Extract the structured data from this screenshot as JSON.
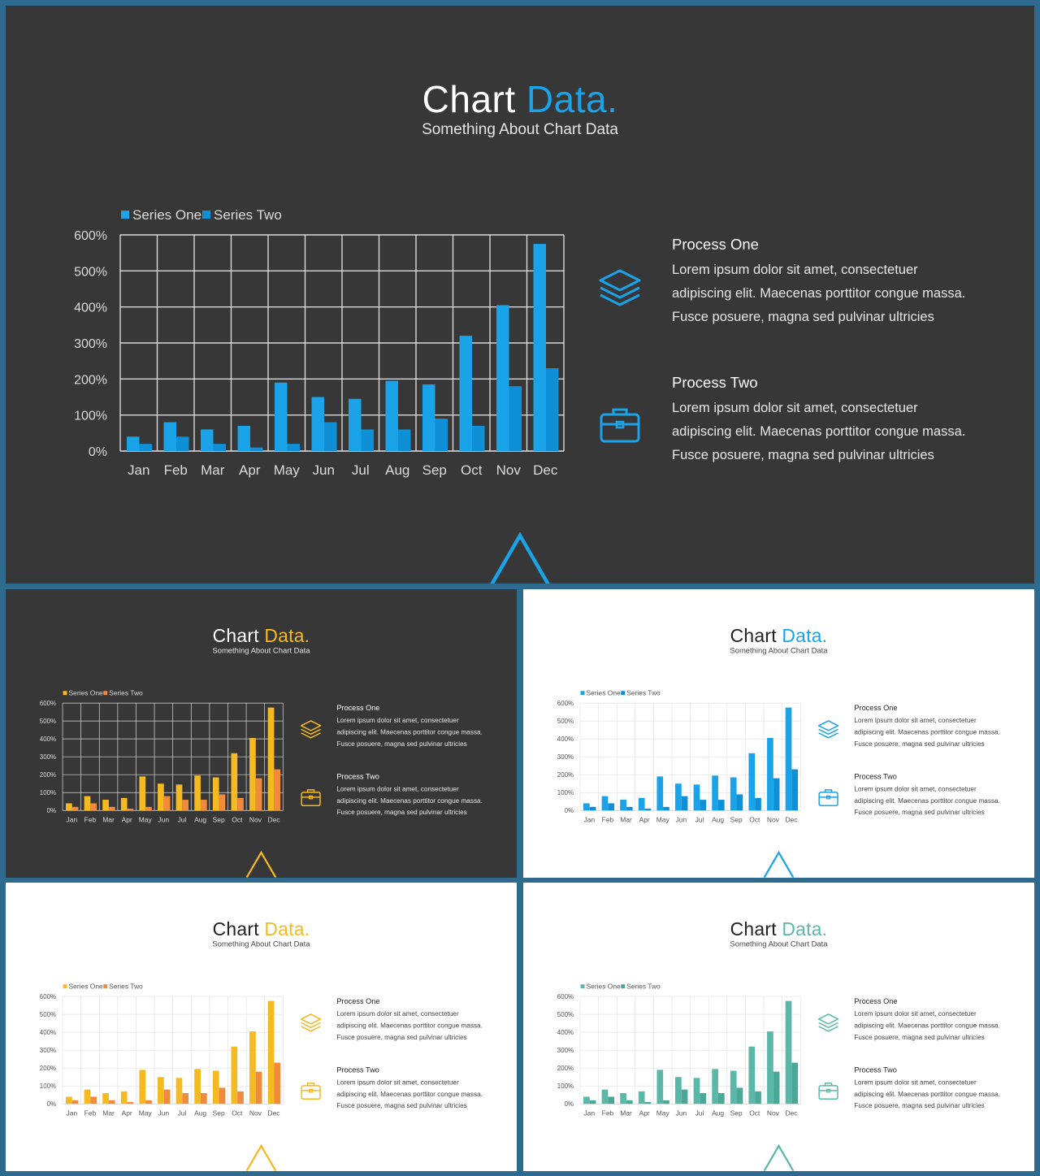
{
  "title": {
    "part1": "Chart",
    "part2": "Data."
  },
  "subtitle": "Something About Chart Data",
  "process_one": {
    "title": "Process One",
    "lines": [
      "Lorem ipsum dolor sit amet, consectetuer",
      "adipiscing elit. Maecenas porttitor congue massa.",
      "Fusce posuere, magna sed pulvinar ultricies"
    ]
  },
  "process_two": {
    "title": "Process Two",
    "lines": [
      "Lorem ipsum dolor sit amet, consectetuer",
      "adipiscing elit. Maecenas porttitor congue massa.",
      "Fusce posuere, magna sed pulvinar ultricies"
    ]
  },
  "icons": [
    "layers-icon",
    "briefcase-icon",
    "triangle-icon"
  ],
  "slides": [
    {
      "id": "slide-main",
      "theme": "dark",
      "accent": "#1aa3e8",
      "series_colors": [
        "#1aa3e8",
        "#0f8fd6"
      ]
    },
    {
      "id": "slide-s1",
      "theme": "dark",
      "accent": "#f5b922",
      "series_colors": [
        "#f5b922",
        "#f08a3c"
      ]
    },
    {
      "id": "slide-s2",
      "theme": "light",
      "accent": "#1aa3e8",
      "series_colors": [
        "#1aa3e8",
        "#0f8fd6"
      ]
    },
    {
      "id": "slide-s3",
      "theme": "light",
      "accent": "#f5b922",
      "series_colors": [
        "#f5b922",
        "#f08a3c"
      ]
    },
    {
      "id": "slide-s4",
      "theme": "light",
      "accent": "#5bb8a9",
      "series_colors": [
        "#5bb8a9",
        "#4aa898"
      ]
    }
  ],
  "chart_data": {
    "type": "bar",
    "categories": [
      "Jan",
      "Feb",
      "Mar",
      "Apr",
      "May",
      "Jun",
      "Jul",
      "Aug",
      "Sep",
      "Oct",
      "Nov",
      "Dec"
    ],
    "series": [
      {
        "name": "Series One",
        "values": [
          40,
          80,
          60,
          70,
          190,
          150,
          145,
          195,
          185,
          320,
          405,
          575
        ]
      },
      {
        "name": "Series Two",
        "values": [
          20,
          40,
          20,
          10,
          20,
          80,
          60,
          60,
          90,
          70,
          180,
          230
        ]
      }
    ],
    "yticks": [
      "0%",
      "100%",
      "200%",
      "300%",
      "400%",
      "500%",
      "600%"
    ],
    "ylim": [
      0,
      600
    ],
    "legend": "top-left",
    "grid": true
  }
}
